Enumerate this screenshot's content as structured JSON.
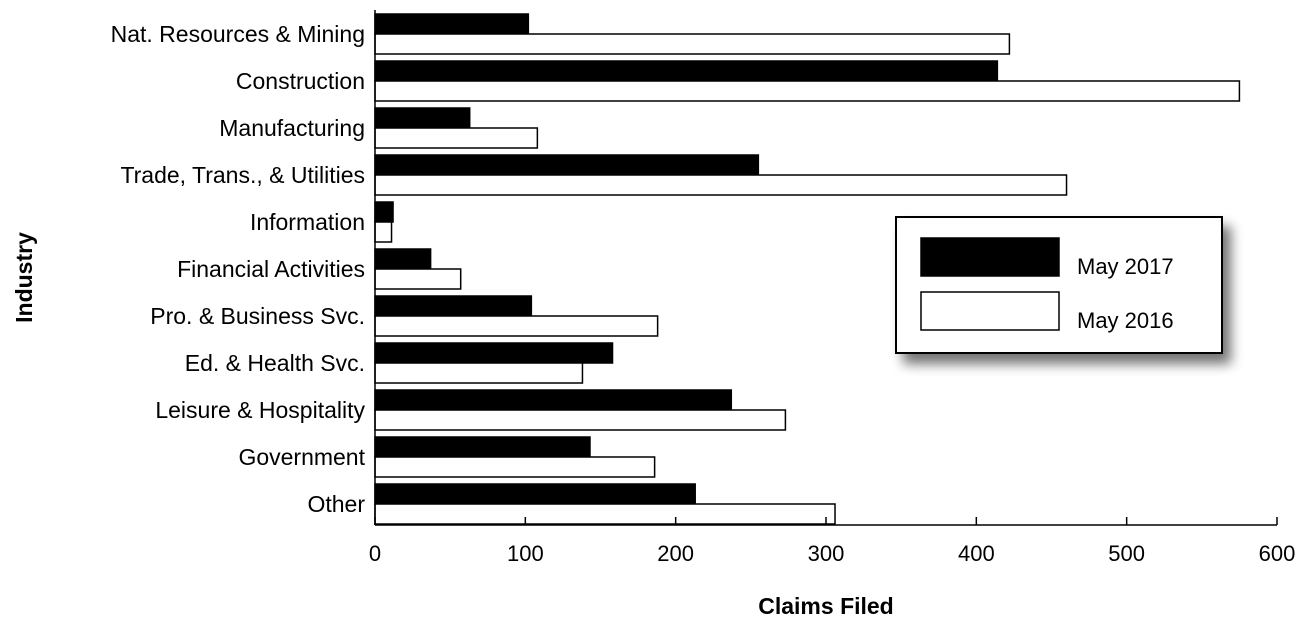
{
  "chart_data": {
    "type": "bar",
    "orientation": "horizontal",
    "categories": [
      "Nat. Resources & Mining",
      "Construction",
      "Manufacturing",
      "Trade, Trans., & Utilities",
      "Information",
      "Financial Activities",
      "Pro. & Business Svc.",
      "Ed. & Health Svc.",
      "Leisure & Hospitality",
      "Government",
      "Other"
    ],
    "series": [
      {
        "name": "May 2017",
        "color": "#000000",
        "values": [
          102,
          414,
          63,
          255,
          12,
          37,
          104,
          158,
          237,
          143,
          213
        ]
      },
      {
        "name": "May 2016",
        "color": "#ffffff",
        "values": [
          422,
          575,
          108,
          460,
          11,
          57,
          188,
          138,
          273,
          186,
          306
        ]
      }
    ],
    "xlabel": "Claims Filed",
    "ylabel": "Industry",
    "xlim": [
      0,
      600
    ],
    "xticks": [
      0,
      100,
      200,
      300,
      400,
      500,
      600
    ],
    "grid": false,
    "legend_position": "right"
  }
}
